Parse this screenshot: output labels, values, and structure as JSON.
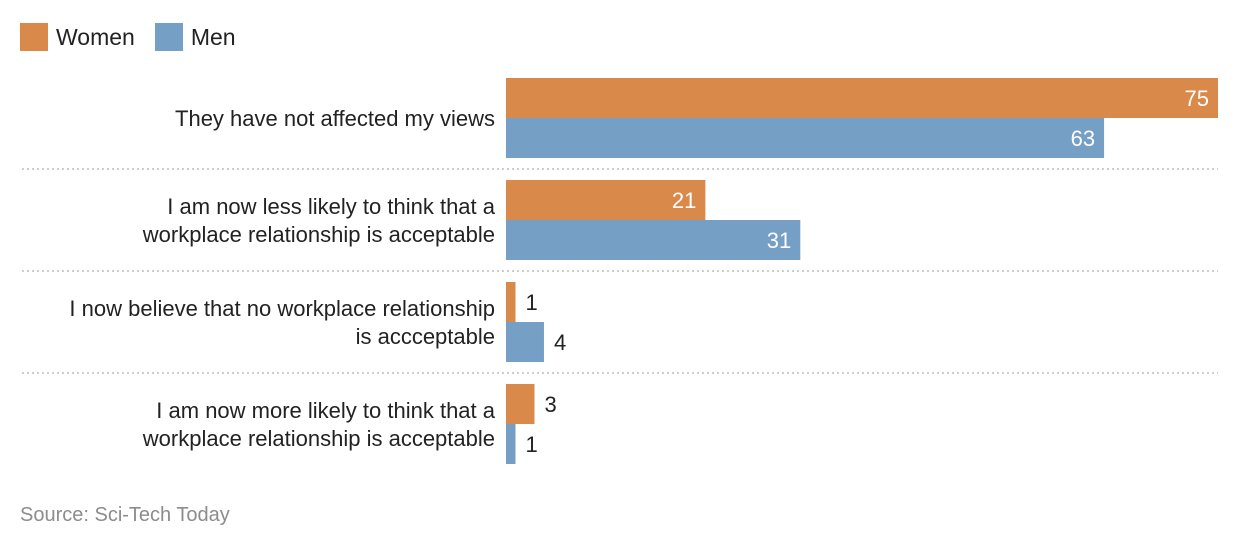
{
  "legend": [
    {
      "name": "Women",
      "color": "#d9894a"
    },
    {
      "name": "Men",
      "color": "#769fc6"
    }
  ],
  "source": "Source: Sci-Tech Today",
  "chart_data": {
    "type": "bar",
    "orientation": "horizontal",
    "categories": [
      [
        "They have not affected my views"
      ],
      [
        "I am now less likely to think that a",
        "workplace relationship is acceptable"
      ],
      [
        "I now believe that no workplace relationship",
        "is accceptable"
      ],
      [
        "I am now more likely to think that a",
        "workplace relationship is acceptable"
      ]
    ],
    "series": [
      {
        "name": "Women",
        "color": "#d9894a",
        "values": [
          75,
          21,
          1,
          3
        ]
      },
      {
        "name": "Men",
        "color": "#769fc6",
        "values": [
          63,
          31,
          4,
          1
        ]
      }
    ],
    "xlim": [
      0,
      75
    ],
    "legend_position": "top-left",
    "grid": false
  }
}
